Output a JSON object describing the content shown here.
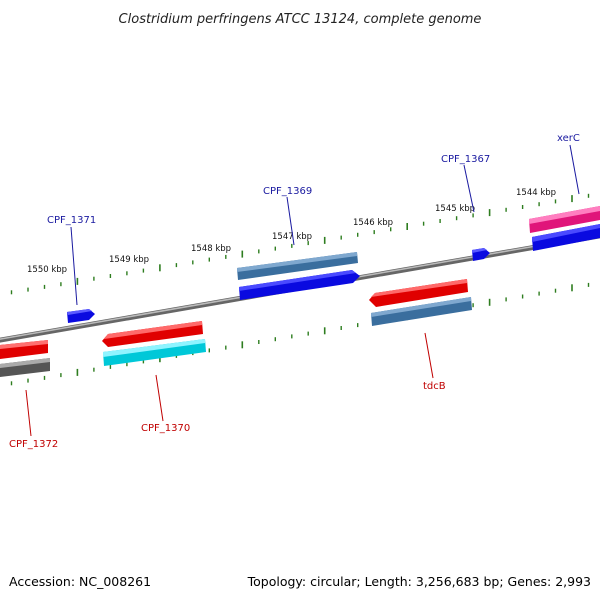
{
  "title": "Clostridium perfringens ATCC 13124, complete genome",
  "accession": "Accession: NC_008261",
  "topology": "Topology: circular; Length: 3,256,683 bp; Genes: 2,993",
  "colors": {
    "backbone": "#888888",
    "tick": "#2e7d1f",
    "forward_label": "#1a1aa0",
    "reverse_label": "#c00000"
  },
  "scale_labels": [
    "1550 kbp",
    "1549 kbp",
    "1548 kbp",
    "1547 kbp",
    "1546 kbp",
    "1545 kbp",
    "1544 kbp"
  ],
  "genes": [
    {
      "label": "CPF_1371",
      "strand": "forward"
    },
    {
      "label": "CPF_1369",
      "strand": "forward"
    },
    {
      "label": "CPF_1367",
      "strand": "forward"
    },
    {
      "label": "xerC",
      "strand": "forward"
    },
    {
      "label": "CPF_1372",
      "strand": "reverse"
    },
    {
      "label": "CPF_1370",
      "strand": "reverse"
    },
    {
      "label": "tdcB",
      "strand": "reverse"
    }
  ]
}
